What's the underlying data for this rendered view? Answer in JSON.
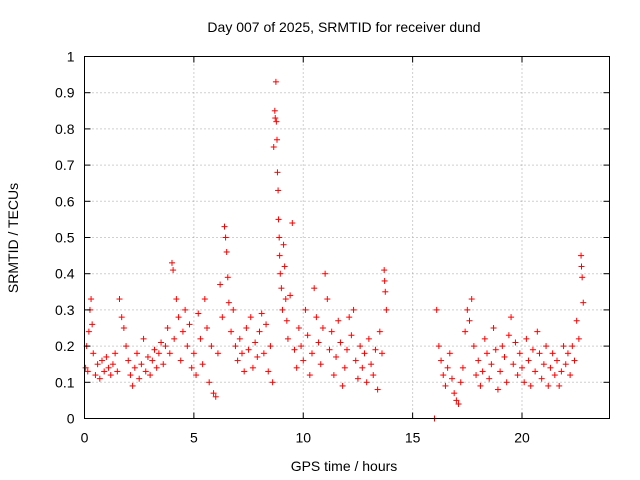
{
  "chart_data": {
    "type": "scatter",
    "title": "Day 007 of 2025, SRMTID for receiver dund",
    "xlabel": "GPS time / hours",
    "ylabel": "SRMTID / TECUs",
    "xlim": [
      0,
      24
    ],
    "ylim": [
      0,
      1
    ],
    "xticks": [
      0,
      5,
      10,
      15,
      20
    ],
    "xtick_labels": [
      "0",
      "5",
      "10",
      "15",
      "20"
    ],
    "yticks": [
      0,
      0.1,
      0.2,
      0.3,
      0.4,
      0.5,
      0.6,
      0.7,
      0.8,
      0.9,
      1
    ],
    "ytick_labels": [
      "0",
      "0.1",
      "0.2",
      "0.3",
      "0.4",
      "0.5",
      "0.6",
      "0.7",
      "0.8",
      "0.9",
      "1"
    ],
    "grid": true,
    "marker": "plus",
    "color": "#ff0000",
    "series": [
      {
        "name": "SRMTID",
        "points": [
          [
            0.05,
            0.14
          ],
          [
            0.1,
            0.2
          ],
          [
            0.15,
            0.13
          ],
          [
            0.2,
            0.24
          ],
          [
            0.25,
            0.3
          ],
          [
            0.3,
            0.33
          ],
          [
            0.35,
            0.26
          ],
          [
            0.4,
            0.18
          ],
          [
            0.5,
            0.12
          ],
          [
            0.6,
            0.15
          ],
          [
            0.7,
            0.11
          ],
          [
            0.8,
            0.16
          ],
          [
            0.9,
            0.13
          ],
          [
            1.0,
            0.17
          ],
          [
            1.1,
            0.14
          ],
          [
            1.2,
            0.12
          ],
          [
            1.3,
            0.15
          ],
          [
            1.4,
            0.18
          ],
          [
            1.5,
            0.13
          ],
          [
            1.6,
            0.33
          ],
          [
            1.7,
            0.28
          ],
          [
            1.8,
            0.25
          ],
          [
            1.9,
            0.2
          ],
          [
            2.0,
            0.16
          ],
          [
            2.1,
            0.12
          ],
          [
            2.2,
            0.09
          ],
          [
            2.3,
            0.14
          ],
          [
            2.4,
            0.18
          ],
          [
            2.5,
            0.11
          ],
          [
            2.6,
            0.15
          ],
          [
            2.7,
            0.22
          ],
          [
            2.8,
            0.13
          ],
          [
            2.9,
            0.17
          ],
          [
            3.0,
            0.12
          ],
          [
            3.1,
            0.16
          ],
          [
            3.2,
            0.19
          ],
          [
            3.3,
            0.14
          ],
          [
            3.4,
            0.18
          ],
          [
            3.5,
            0.21
          ],
          [
            3.6,
            0.15
          ],
          [
            3.7,
            0.2
          ],
          [
            3.8,
            0.25
          ],
          [
            3.9,
            0.18
          ],
          [
            4.0,
            0.43
          ],
          [
            4.05,
            0.41
          ],
          [
            4.1,
            0.22
          ],
          [
            4.2,
            0.33
          ],
          [
            4.3,
            0.28
          ],
          [
            4.4,
            0.16
          ],
          [
            4.5,
            0.24
          ],
          [
            4.6,
            0.3
          ],
          [
            4.7,
            0.2
          ],
          [
            4.8,
            0.26
          ],
          [
            4.9,
            0.14
          ],
          [
            5.0,
            0.18
          ],
          [
            5.1,
            0.12
          ],
          [
            5.2,
            0.29
          ],
          [
            5.3,
            0.22
          ],
          [
            5.4,
            0.15
          ],
          [
            5.5,
            0.33
          ],
          [
            5.6,
            0.25
          ],
          [
            5.7,
            0.1
          ],
          [
            5.8,
            0.2
          ],
          [
            5.9,
            0.07
          ],
          [
            6.0,
            0.06
          ],
          [
            6.1,
            0.18
          ],
          [
            6.2,
            0.37
          ],
          [
            6.3,
            0.28
          ],
          [
            6.4,
            0.53
          ],
          [
            6.45,
            0.5
          ],
          [
            6.5,
            0.46
          ],
          [
            6.55,
            0.39
          ],
          [
            6.6,
            0.32
          ],
          [
            6.7,
            0.24
          ],
          [
            6.8,
            0.3
          ],
          [
            6.9,
            0.2
          ],
          [
            7.0,
            0.16
          ],
          [
            7.1,
            0.22
          ],
          [
            7.2,
            0.18
          ],
          [
            7.3,
            0.13
          ],
          [
            7.4,
            0.25
          ],
          [
            7.5,
            0.19
          ],
          [
            7.6,
            0.28
          ],
          [
            7.7,
            0.14
          ],
          [
            7.8,
            0.21
          ],
          [
            7.9,
            0.17
          ],
          [
            8.0,
            0.24
          ],
          [
            8.1,
            0.29
          ],
          [
            8.2,
            0.18
          ],
          [
            8.3,
            0.26
          ],
          [
            8.4,
            0.13
          ],
          [
            8.5,
            0.2
          ],
          [
            8.6,
            0.1
          ],
          [
            8.65,
            0.75
          ],
          [
            8.7,
            0.85
          ],
          [
            8.72,
            0.83
          ],
          [
            8.75,
            0.93
          ],
          [
            8.77,
            0.82
          ],
          [
            8.8,
            0.77
          ],
          [
            8.82,
            0.68
          ],
          [
            8.85,
            0.63
          ],
          [
            8.87,
            0.55
          ],
          [
            8.9,
            0.5
          ],
          [
            8.92,
            0.45
          ],
          [
            8.95,
            0.4
          ],
          [
            9.0,
            0.36
          ],
          [
            9.05,
            0.3
          ],
          [
            9.1,
            0.48
          ],
          [
            9.15,
            0.42
          ],
          [
            9.2,
            0.33
          ],
          [
            9.25,
            0.27
          ],
          [
            9.3,
            0.22
          ],
          [
            9.4,
            0.34
          ],
          [
            9.5,
            0.54
          ],
          [
            9.6,
            0.19
          ],
          [
            9.7,
            0.14
          ],
          [
            9.8,
            0.25
          ],
          [
            9.9,
            0.2
          ],
          [
            10.0,
            0.16
          ],
          [
            10.1,
            0.3
          ],
          [
            10.2,
            0.23
          ],
          [
            10.3,
            0.12
          ],
          [
            10.4,
            0.18
          ],
          [
            10.5,
            0.36
          ],
          [
            10.6,
            0.28
          ],
          [
            10.7,
            0.21
          ],
          [
            10.8,
            0.15
          ],
          [
            10.9,
            0.25
          ],
          [
            11.0,
            0.4
          ],
          [
            11.1,
            0.33
          ],
          [
            11.2,
            0.19
          ],
          [
            11.3,
            0.24
          ],
          [
            11.4,
            0.12
          ],
          [
            11.5,
            0.17
          ],
          [
            11.6,
            0.27
          ],
          [
            11.7,
            0.21
          ],
          [
            11.8,
            0.09
          ],
          [
            11.9,
            0.14
          ],
          [
            12.0,
            0.19
          ],
          [
            12.1,
            0.28
          ],
          [
            12.2,
            0.23
          ],
          [
            12.3,
            0.3
          ],
          [
            12.4,
            0.16
          ],
          [
            12.5,
            0.11
          ],
          [
            12.6,
            0.2
          ],
          [
            12.7,
            0.14
          ],
          [
            12.8,
            0.18
          ],
          [
            12.9,
            0.1
          ],
          [
            13.0,
            0.22
          ],
          [
            13.1,
            0.15
          ],
          [
            13.2,
            0.12
          ],
          [
            13.3,
            0.19
          ],
          [
            13.4,
            0.08
          ],
          [
            13.5,
            0.24
          ],
          [
            13.6,
            0.18
          ],
          [
            13.7,
            0.41
          ],
          [
            13.72,
            0.38
          ],
          [
            13.75,
            0.35
          ],
          [
            13.8,
            0.3
          ],
          [
            16.0,
            0.0
          ],
          [
            16.1,
            0.3
          ],
          [
            16.2,
            0.2
          ],
          [
            16.3,
            0.16
          ],
          [
            16.4,
            0.12
          ],
          [
            16.5,
            0.09
          ],
          [
            16.6,
            0.14
          ],
          [
            16.7,
            0.18
          ],
          [
            16.8,
            0.11
          ],
          [
            16.9,
            0.07
          ],
          [
            17.0,
            0.05
          ],
          [
            17.1,
            0.04
          ],
          [
            17.2,
            0.1
          ],
          [
            17.3,
            0.14
          ],
          [
            17.4,
            0.24
          ],
          [
            17.5,
            0.3
          ],
          [
            17.6,
            0.27
          ],
          [
            17.7,
            0.33
          ],
          [
            17.8,
            0.2
          ],
          [
            17.9,
            0.12
          ],
          [
            18.0,
            0.16
          ],
          [
            18.1,
            0.09
          ],
          [
            18.2,
            0.13
          ],
          [
            18.3,
            0.22
          ],
          [
            18.4,
            0.18
          ],
          [
            18.5,
            0.11
          ],
          [
            18.6,
            0.15
          ],
          [
            18.7,
            0.25
          ],
          [
            18.8,
            0.19
          ],
          [
            18.9,
            0.08
          ],
          [
            19.0,
            0.13
          ],
          [
            19.1,
            0.2
          ],
          [
            19.2,
            0.17
          ],
          [
            19.3,
            0.1
          ],
          [
            19.4,
            0.23
          ],
          [
            19.5,
            0.28
          ],
          [
            19.6,
            0.15
          ],
          [
            19.7,
            0.21
          ],
          [
            19.8,
            0.12
          ],
          [
            19.9,
            0.18
          ],
          [
            20.0,
            0.14
          ],
          [
            20.1,
            0.1
          ],
          [
            20.2,
            0.22
          ],
          [
            20.3,
            0.16
          ],
          [
            20.4,
            0.09
          ],
          [
            20.5,
            0.19
          ],
          [
            20.6,
            0.13
          ],
          [
            20.7,
            0.24
          ],
          [
            20.8,
            0.18
          ],
          [
            20.9,
            0.11
          ],
          [
            21.0,
            0.15
          ],
          [
            21.1,
            0.2
          ],
          [
            21.2,
            0.09
          ],
          [
            21.3,
            0.14
          ],
          [
            21.4,
            0.18
          ],
          [
            21.5,
            0.12
          ],
          [
            21.6,
            0.16
          ],
          [
            21.7,
            0.09
          ],
          [
            21.8,
            0.13
          ],
          [
            21.9,
            0.2
          ],
          [
            22.0,
            0.15
          ],
          [
            22.1,
            0.18
          ],
          [
            22.2,
            0.12
          ],
          [
            22.3,
            0.2
          ],
          [
            22.4,
            0.16
          ],
          [
            22.5,
            0.27
          ],
          [
            22.6,
            0.22
          ],
          [
            22.7,
            0.45
          ],
          [
            22.72,
            0.42
          ],
          [
            22.75,
            0.39
          ],
          [
            22.8,
            0.32
          ]
        ]
      }
    ]
  }
}
